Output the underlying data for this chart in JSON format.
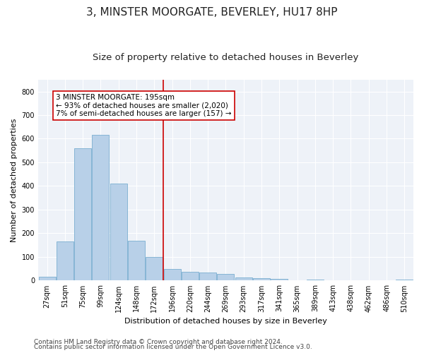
{
  "title": "3, MINSTER MOORGATE, BEVERLEY, HU17 8HP",
  "subtitle": "Size of property relative to detached houses in Beverley",
  "xlabel": "Distribution of detached houses by size in Beverley",
  "ylabel": "Number of detached properties",
  "categories": [
    "27sqm",
    "51sqm",
    "75sqm",
    "99sqm",
    "124sqm",
    "148sqm",
    "172sqm",
    "196sqm",
    "220sqm",
    "244sqm",
    "269sqm",
    "293sqm",
    "317sqm",
    "341sqm",
    "365sqm",
    "389sqm",
    "413sqm",
    "438sqm",
    "462sqm",
    "486sqm",
    "510sqm"
  ],
  "values": [
    15,
    165,
    560,
    615,
    410,
    170,
    100,
    50,
    38,
    33,
    28,
    12,
    10,
    7,
    2,
    5,
    2,
    0,
    0,
    0,
    5
  ],
  "bar_color": "#b8d0e8",
  "bar_edge_color": "#7aaed0",
  "vline_index": 7,
  "vline_color": "#cc0000",
  "annotation_line1": "3 MINSTER MOORGATE: 195sqm",
  "annotation_line2": "← 93% of detached houses are smaller (2,020)",
  "annotation_line3": "7% of semi-detached houses are larger (157) →",
  "annotation_box_color": "#ffffff",
  "annotation_box_edge": "#cc0000",
  "ylim": [
    0,
    850
  ],
  "yticks": [
    0,
    100,
    200,
    300,
    400,
    500,
    600,
    700,
    800
  ],
  "bg_color": "#eef2f8",
  "grid_color": "#ffffff",
  "footer1": "Contains HM Land Registry data © Crown copyright and database right 2024.",
  "footer2": "Contains public sector information licensed under the Open Government Licence v3.0.",
  "title_fontsize": 11,
  "subtitle_fontsize": 9.5,
  "axis_label_fontsize": 8,
  "tick_fontsize": 7,
  "annotation_fontsize": 7.5,
  "footer_fontsize": 6.5
}
